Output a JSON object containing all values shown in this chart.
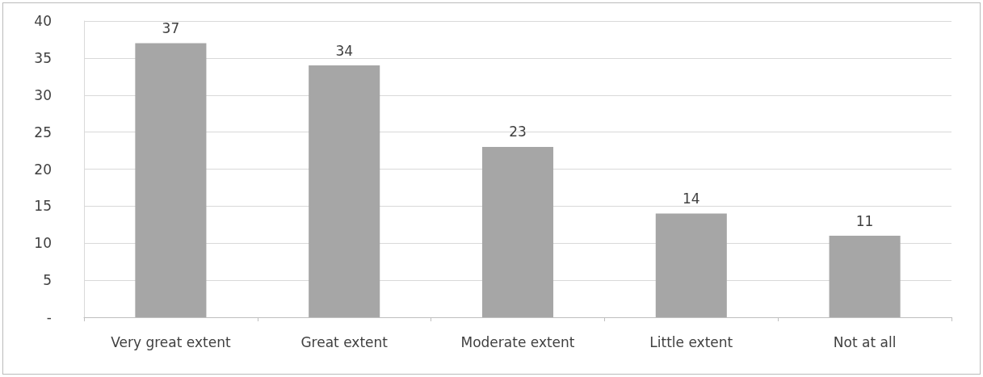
{
  "chart_data": {
    "type": "bar",
    "categories": [
      "Very great extent",
      "Great extent",
      "Moderate extent",
      "Little extent",
      "Not at all"
    ],
    "values": [
      37,
      34,
      23,
      14,
      11
    ],
    "color": "#a6a6a6",
    "ylim": [
      0,
      40
    ],
    "yticks": [
      {
        "value": 0,
        "label": "-"
      },
      5,
      10,
      15,
      20,
      25,
      30,
      35,
      40
    ],
    "grid": "y",
    "data_labels": true
  }
}
